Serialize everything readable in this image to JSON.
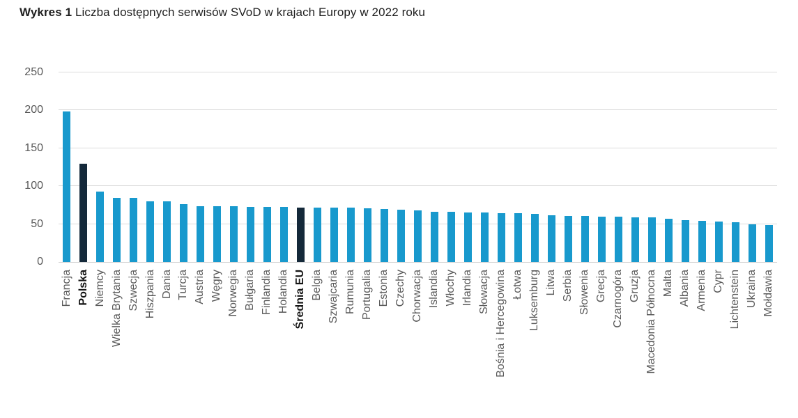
{
  "title": {
    "prefix": "Wykres 1",
    "text": " Liczba dostępnych serwisów SVoD w krajach Europy w 2022 roku"
  },
  "colors": {
    "bar": "#1899CD",
    "bar_emphasis": "#14293A",
    "grid": "#DCDCDC",
    "axis_line": "#CFCFCF",
    "axis_text": "#595959",
    "emphasis_text": "#141414"
  },
  "chart_data": {
    "type": "bar",
    "title": "Wykres 1 Liczba dostępnych serwisów SVoD w krajach Europy w 2022 roku",
    "xlabel": "",
    "ylabel": "",
    "ylim": [
      0,
      250
    ],
    "yticks": [
      0,
      50,
      100,
      150,
      200,
      250
    ],
    "grid": true,
    "legend": "none",
    "categories": [
      "Francja",
      "Polska",
      "Niemcy",
      "Wielka Brytania",
      "Szwecja",
      "Hiszpania",
      "Dania",
      "Turcja",
      "Austria",
      "Węgry",
      "Norwegia",
      "Bułgaria",
      "Finlandia",
      "Holandia",
      "Średnia EU",
      "Belgia",
      "Szwajcaria",
      "Rumunia",
      "Portugalia",
      "Estonia",
      "Czechy",
      "Chorwacja",
      "Islandia",
      "Włochy",
      "Irlandia",
      "Słowacja",
      "Bośnia i Hercegowina",
      "Łotwa",
      "Luksemburg",
      "Litwa",
      "Serbia",
      "Słowenia",
      "Grecja",
      "Czarnogóra",
      "Gruzja",
      "Macedonia Północna",
      "Malta",
      "Albania",
      "Armenia",
      "Cypr",
      "Lichtenstein",
      "Ukraina",
      "Mołdawia"
    ],
    "values": [
      199,
      130,
      93,
      85,
      85,
      80,
      80,
      76,
      74,
      74,
      74,
      73,
      73,
      73,
      72,
      72,
      72,
      72,
      71,
      70,
      69,
      68,
      66,
      66,
      65,
      65,
      64,
      64,
      63,
      62,
      61,
      61,
      60,
      60,
      59,
      59,
      57,
      55,
      54,
      53,
      52,
      50,
      49
    ],
    "emphasized": [
      "Polska",
      "Średnia EU"
    ]
  }
}
